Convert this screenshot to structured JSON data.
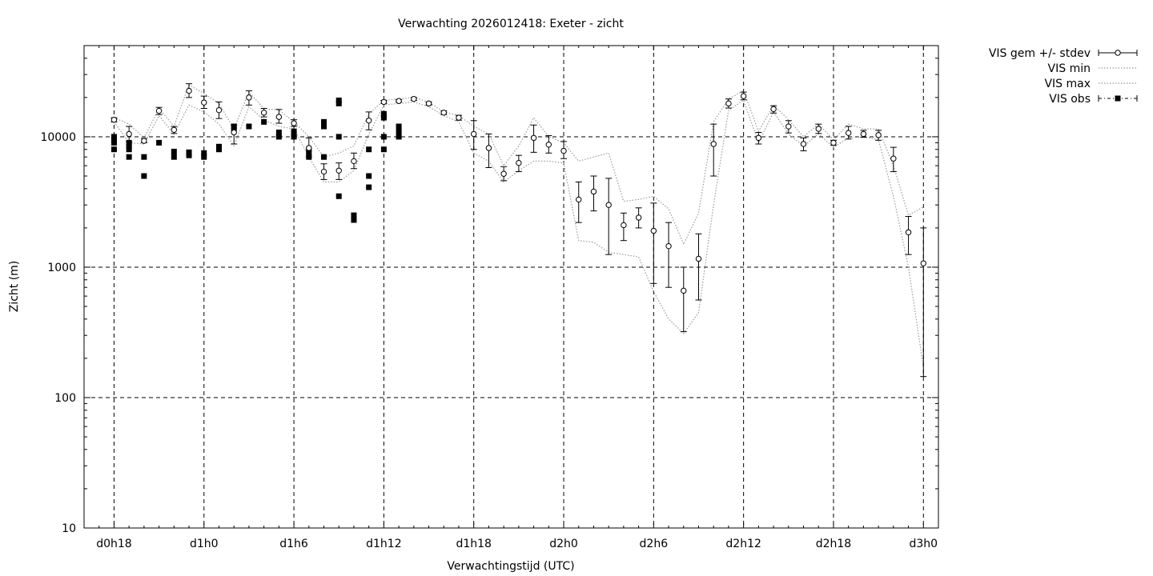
{
  "chart_data": {
    "type": "scatter",
    "title": "Verwachting 2026012418: Exeter - zicht",
    "xlabel": "Verwachtingstijd (UTC)",
    "ylabel": "Zicht (m)",
    "yscale": "log",
    "ylim": [
      10,
      50000
    ],
    "xlim": [
      -2,
      55
    ],
    "grid": true,
    "legend_position": "outside-top-right",
    "x_ticks": [
      {
        "x": 0,
        "label": "d0h18"
      },
      {
        "x": 6,
        "label": "d1h0"
      },
      {
        "x": 12,
        "label": "d1h6"
      },
      {
        "x": 18,
        "label": "d1h12"
      },
      {
        "x": 24,
        "label": "d1h18"
      },
      {
        "x": 30,
        "label": "d2h0"
      },
      {
        "x": 36,
        "label": "d2h6"
      },
      {
        "x": 42,
        "label": "d2h12"
      },
      {
        "x": 48,
        "label": "d2h18"
      },
      {
        "x": 54,
        "label": "d3h0"
      }
    ],
    "y_ticks": [
      {
        "y": 10,
        "label": "10"
      },
      {
        "y": 100,
        "label": "100"
      },
      {
        "y": 1000,
        "label": "1000"
      },
      {
        "y": 10000,
        "label": "10000"
      }
    ],
    "legend": [
      "VIS gem +/- stdev",
      "VIS min",
      "VIS max",
      "VIS obs"
    ],
    "series": [
      {
        "name": "VIS gem +/- stdev",
        "style": "errorbar",
        "x": [
          0,
          1,
          2,
          3,
          4,
          5,
          6,
          7,
          8,
          9,
          10,
          11,
          12,
          13,
          14,
          15,
          16,
          17,
          18,
          19,
          20,
          21,
          22,
          23,
          24,
          25,
          26,
          27,
          28,
          29,
          30,
          31,
          32,
          33,
          34,
          35,
          36,
          37,
          38,
          39,
          40,
          41,
          42,
          43,
          44,
          45,
          46,
          47,
          48,
          49,
          50,
          51,
          52,
          53,
          54
        ],
        "y": [
          13500,
          10500,
          9300,
          15800,
          11300,
          22500,
          18300,
          16000,
          10800,
          20000,
          15300,
          14200,
          12700,
          8200,
          5400,
          5500,
          6500,
          13300,
          18500,
          18800,
          19500,
          18000,
          15300,
          14000,
          10500,
          8200,
          5200,
          6300,
          9800,
          8700,
          7800,
          3300,
          3800,
          3000,
          2100,
          2400,
          1900,
          1450,
          660,
          1160,
          8800,
          18000,
          20500,
          9800,
          16300,
          12000,
          8800,
          11500,
          9000,
          10700,
          10500,
          10300,
          6800,
          1850,
          1070
        ],
        "ylow": [
          13000,
          9200,
          9000,
          14800,
          10600,
          20000,
          16500,
          13800,
          8800,
          17500,
          14200,
          12700,
          12000,
          7000,
          4700,
          4700,
          5700,
          11300,
          18000,
          18400,
          19000,
          17500,
          14800,
          13400,
          8000,
          5800,
          4600,
          5400,
          7600,
          7500,
          6800,
          2200,
          2700,
          1250,
          1600,
          2000,
          750,
          700,
          320,
          560,
          5000,
          16600,
          19200,
          8800,
          15200,
          10700,
          7800,
          10600,
          8600,
          9600,
          9900,
          9400,
          5400,
          1250,
          145
        ],
        "yhigh": [
          14000,
          12000,
          9700,
          16800,
          12000,
          25500,
          20500,
          18500,
          12300,
          22500,
          16500,
          16200,
          13500,
          9800,
          6200,
          6300,
          7500,
          15500,
          19000,
          19300,
          20000,
          18500,
          15800,
          14600,
          13300,
          10500,
          5900,
          7200,
          12300,
          10200,
          9200,
          4500,
          5000,
          4800,
          2600,
          2850,
          3100,
          2200,
          1000,
          1800,
          12500,
          19500,
          22000,
          10800,
          17300,
          13300,
          9800,
          12500,
          9400,
          12000,
          11200,
          11200,
          8300,
          2450,
          2000
        ]
      },
      {
        "name": "VIS min",
        "style": "dotted",
        "x": [
          0,
          1,
          2,
          3,
          4,
          5,
          6,
          7,
          8,
          9,
          10,
          11,
          12,
          13,
          14,
          15,
          16,
          17,
          18,
          19,
          20,
          21,
          22,
          23,
          24,
          25,
          26,
          27,
          28,
          29,
          30,
          31,
          32,
          33,
          34,
          35,
          36,
          37,
          38,
          39,
          40,
          41,
          42,
          43,
          44,
          45,
          46,
          47,
          48,
          49,
          50,
          51,
          52,
          53,
          54
        ],
        "y": [
          13000,
          9000,
          8800,
          14500,
          10500,
          17500,
          15500,
          12500,
          8500,
          17000,
          13500,
          12000,
          11500,
          7000,
          4500,
          4500,
          5500,
          10500,
          17500,
          18000,
          18500,
          17000,
          14500,
          13000,
          7500,
          6500,
          4500,
          5500,
          6500,
          6500,
          6300,
          1600,
          1550,
          1300,
          1250,
          1200,
          650,
          400,
          310,
          450,
          3000,
          16000,
          19000,
          9000,
          15500,
          10500,
          8500,
          10500,
          8300,
          9800,
          10000,
          9500,
          3500,
          1000,
          170
        ]
      },
      {
        "name": "VIS max",
        "style": "dotted",
        "x": [
          0,
          1,
          2,
          3,
          4,
          5,
          6,
          7,
          8,
          9,
          10,
          11,
          12,
          13,
          14,
          15,
          16,
          17,
          18,
          19,
          20,
          21,
          22,
          23,
          24,
          25,
          26,
          27,
          28,
          29,
          30,
          31,
          32,
          33,
          34,
          35,
          36,
          37,
          38,
          39,
          40,
          41,
          42,
          43,
          44,
          45,
          46,
          47,
          48,
          49,
          50,
          51,
          52,
          53,
          54
        ],
        "y": [
          14000,
          12500,
          9800,
          16500,
          12000,
          25000,
          21500,
          18000,
          11500,
          22000,
          16500,
          16000,
          13000,
          10000,
          7000,
          7500,
          8500,
          15000,
          19000,
          19500,
          20000,
          18500,
          15500,
          14500,
          12000,
          10500,
          6000,
          8500,
          14000,
          10000,
          9000,
          6500,
          7000,
          7500,
          3200,
          3300,
          3500,
          2800,
          1500,
          2600,
          13000,
          19500,
          22500,
          11000,
          17500,
          13500,
          10000,
          12500,
          9500,
          12500,
          11500,
          11500,
          6000,
          2500,
          2900
        ]
      },
      {
        "name": "VIS obs",
        "style": "points",
        "x": [
          0,
          0,
          0,
          0,
          1,
          1,
          1,
          1,
          2,
          2,
          3,
          4,
          4,
          5,
          5,
          6,
          6,
          7,
          7,
          8,
          8,
          9,
          10,
          11,
          11,
          12,
          12,
          12,
          13,
          13,
          13,
          14,
          14,
          14,
          15,
          15,
          15,
          15,
          16,
          16,
          17,
          17,
          17,
          18,
          18,
          18,
          18,
          18,
          19,
          19,
          19
        ],
        "y": [
          10000,
          9500,
          9000,
          8000,
          8500,
          8000,
          7000,
          9000,
          7000,
          5000,
          9000,
          7000,
          7700,
          7200,
          7600,
          7000,
          7500,
          8000,
          8400,
          12000,
          11500,
          12000,
          13000,
          10000,
          10800,
          10000,
          10500,
          11000,
          7000,
          7500,
          8000,
          7000,
          12000,
          13000,
          10000,
          18000,
          19000,
          3500,
          2300,
          2500,
          8000,
          5000,
          4100,
          8000,
          10000,
          14000,
          14500,
          15000,
          10000,
          11000,
          12000
        ]
      }
    ]
  }
}
